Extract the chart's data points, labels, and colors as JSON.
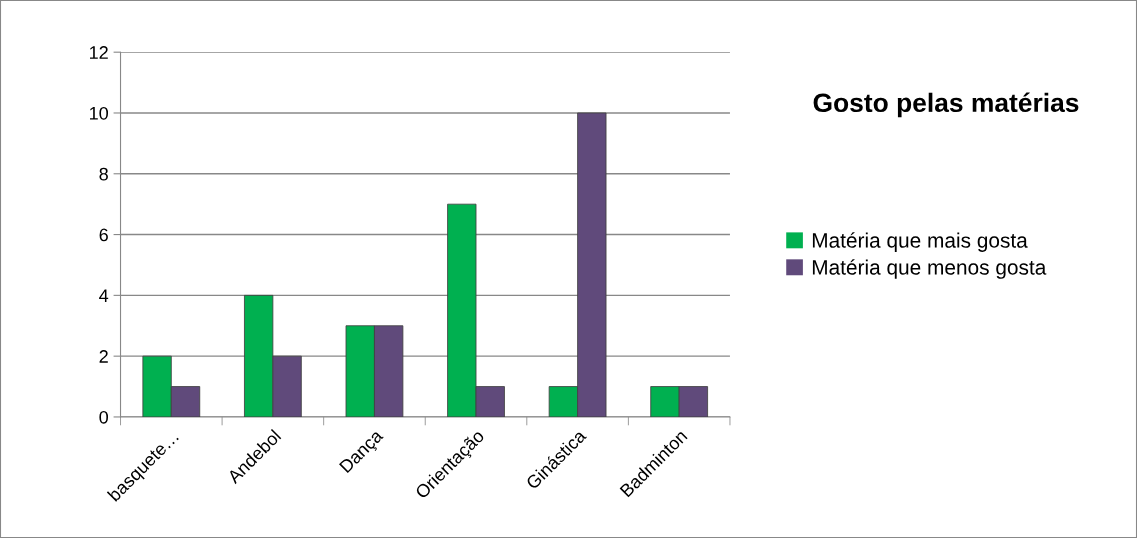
{
  "chart_data": {
    "type": "bar",
    "title": "Gosto pelas matérias",
    "categories": [
      "basquete…",
      "Andebol",
      "Dança",
      "Orientação",
      "Ginástica",
      "Badminton"
    ],
    "series": [
      {
        "name": "Matéria que mais gosta",
        "color": "#00b050",
        "values": [
          2,
          4,
          3,
          7,
          1,
          1
        ]
      },
      {
        "name": "Matéria que menos gosta",
        "color": "#604a7b",
        "values": [
          1,
          2,
          3,
          1,
          10,
          1
        ]
      }
    ],
    "ylim": [
      0,
      12
    ],
    "yticks": [
      0,
      2,
      4,
      6,
      8,
      10,
      12
    ],
    "grid": "y",
    "legend": "right"
  }
}
